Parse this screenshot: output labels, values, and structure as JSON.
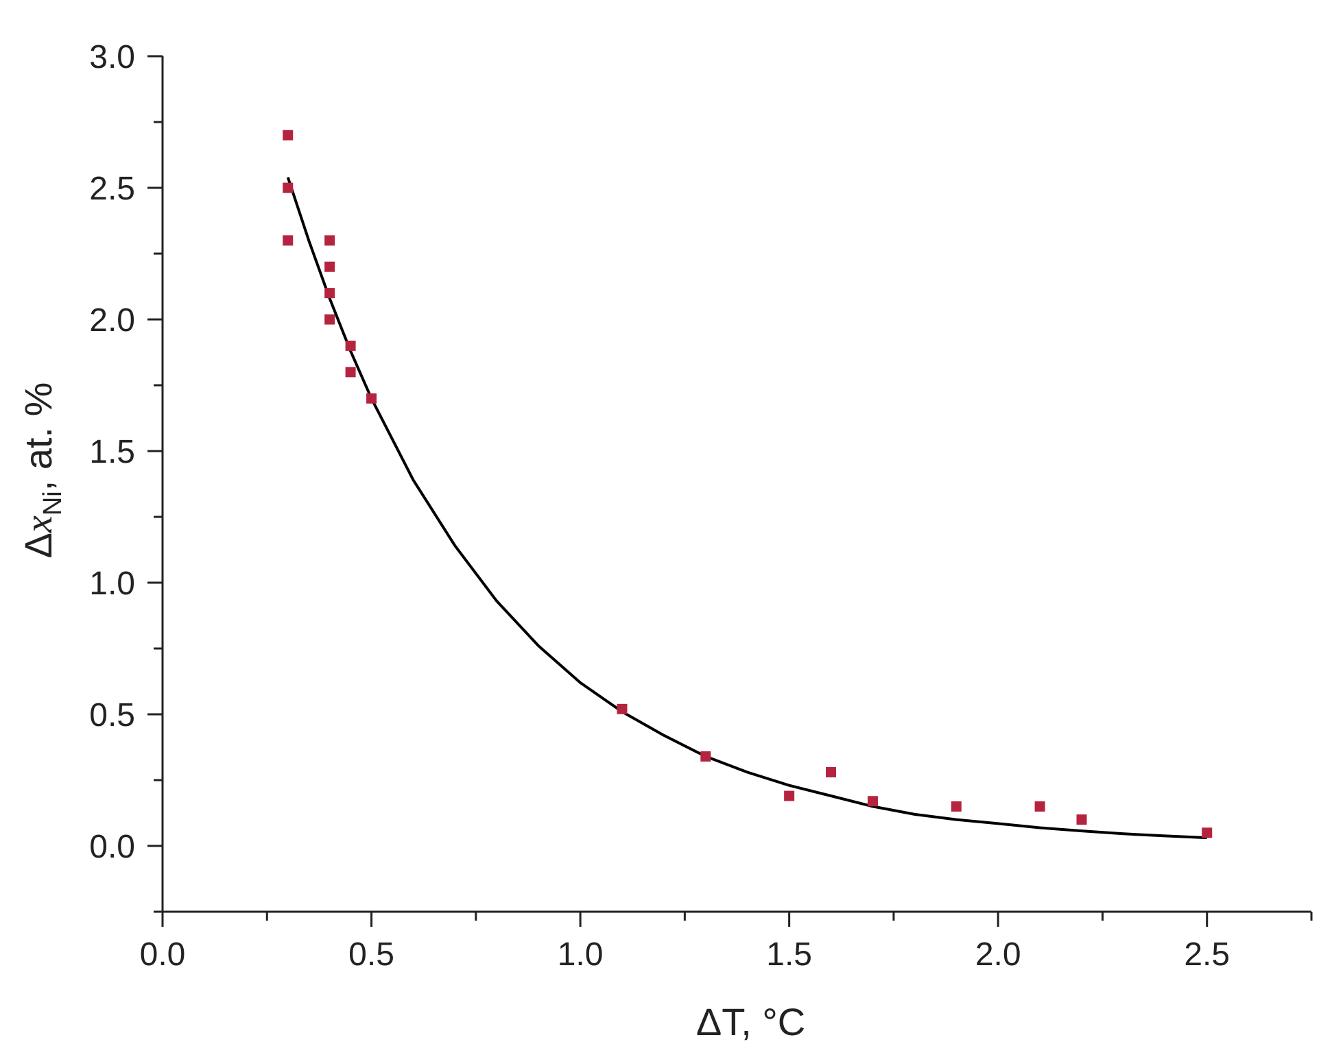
{
  "chart_data": {
    "type": "scatter",
    "title": "",
    "xlabel": "ΔT, °C",
    "ylabel": {
      "delta": "Δ",
      "symbol": "x",
      "subscript": "Ni",
      "suffix": ", at. %"
    },
    "xlim": [
      0.0,
      2.75
    ],
    "ylim": [
      -0.25,
      3.0
    ],
    "x_ticks": [
      "0.0",
      "0.5",
      "1.0",
      "1.5",
      "2.0",
      "2.5"
    ],
    "y_ticks": [
      "0.0",
      "0.5",
      "1.0",
      "1.5",
      "2.0",
      "2.5",
      "3.0"
    ],
    "grid": false,
    "legend": "none",
    "series": [
      {
        "kind": "points",
        "color": "#b5243f",
        "marker": "square",
        "x": [
          0.3,
          0.3,
          0.3,
          0.4,
          0.4,
          0.4,
          0.4,
          0.45,
          0.45,
          0.5,
          1.1,
          1.3,
          1.5,
          1.6,
          1.7,
          1.9,
          2.1,
          2.2,
          2.5
        ],
        "y": [
          2.7,
          2.5,
          2.3,
          2.3,
          2.2,
          2.1,
          2.0,
          1.9,
          1.8,
          1.7,
          0.52,
          0.34,
          0.19,
          0.28,
          0.17,
          0.15,
          0.15,
          0.1,
          0.05
        ]
      },
      {
        "kind": "fit-curve",
        "color": "#000000",
        "x": [
          0.3,
          0.35,
          0.4,
          0.45,
          0.5,
          0.6,
          0.7,
          0.8,
          0.9,
          1.0,
          1.1,
          1.2,
          1.3,
          1.4,
          1.5,
          1.6,
          1.7,
          1.8,
          1.9,
          2.0,
          2.1,
          2.2,
          2.3,
          2.4,
          2.5
        ],
        "y": [
          2.54,
          2.3,
          2.08,
          1.88,
          1.7,
          1.39,
          1.14,
          0.93,
          0.76,
          0.62,
          0.51,
          0.42,
          0.34,
          0.28,
          0.23,
          0.19,
          0.15,
          0.12,
          0.1,
          0.085,
          0.069,
          0.057,
          0.046,
          0.038,
          0.031
        ]
      }
    ]
  }
}
